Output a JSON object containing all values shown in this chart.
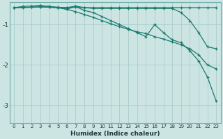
{
  "background_color": "#cce5e3",
  "grid_color": "#aaccca",
  "line_color": "#1a7a6e",
  "xlabel": "Humidex (Indice chaleur)",
  "xlim": [
    -0.5,
    23.5
  ],
  "ylim": [
    -3.45,
    -0.45
  ],
  "yticks": [
    -3,
    -2,
    -1
  ],
  "xticks": [
    0,
    1,
    2,
    3,
    4,
    5,
    6,
    7,
    8,
    9,
    10,
    11,
    12,
    13,
    14,
    15,
    16,
    17,
    18,
    19,
    20,
    21,
    22,
    23
  ],
  "series": [
    {
      "x": [
        0,
        1,
        2,
        3,
        4,
        5,
        6,
        7,
        8,
        9,
        10,
        11,
        12,
        13,
        14,
        15,
        16,
        17,
        18,
        19,
        20,
        21,
        22,
        23
      ],
      "y": [
        -0.58,
        -0.58,
        -0.57,
        -0.56,
        -0.57,
        -0.58,
        -0.58,
        -0.57,
        -0.58,
        -0.58,
        -0.58,
        -0.58,
        -0.58,
        -0.58,
        -0.58,
        -0.58,
        -0.58,
        -0.58,
        -0.58,
        -0.58,
        -0.58,
        -0.58,
        -0.58,
        -0.58
      ]
    },
    {
      "x": [
        0,
        1,
        2,
        3,
        4,
        5,
        6,
        7,
        8,
        9,
        10,
        11,
        12,
        13,
        14,
        15,
        16,
        17,
        18,
        19,
        20,
        21,
        22,
        23
      ],
      "y": [
        -0.58,
        -0.55,
        -0.54,
        -0.53,
        -0.55,
        -0.57,
        -0.58,
        -0.54,
        -0.58,
        -0.6,
        -0.6,
        -0.6,
        -0.6,
        -0.6,
        -0.6,
        -0.6,
        -0.6,
        -0.6,
        -0.6,
        -0.7,
        -0.9,
        -1.2,
        -1.55,
        -1.6
      ]
    },
    {
      "x": [
        0,
        1,
        2,
        3,
        4,
        5,
        6,
        7,
        8,
        9,
        10,
        11,
        12,
        13,
        14,
        15,
        16,
        17,
        18,
        19,
        20,
        21,
        22,
        23
      ],
      "y": [
        -0.58,
        -0.57,
        -0.57,
        -0.56,
        -0.57,
        -0.58,
        -0.62,
        -0.68,
        -0.75,
        -0.82,
        -0.9,
        -0.98,
        -1.05,
        -1.12,
        -1.18,
        -1.22,
        -1.3,
        -1.36,
        -1.43,
        -1.5,
        -1.6,
        -1.75,
        -2.0,
        -2.1
      ]
    },
    {
      "x": [
        2,
        3,
        4,
        5,
        6,
        7,
        8,
        9,
        10,
        11,
        12,
        13,
        14,
        15,
        16,
        17,
        18,
        19,
        20,
        21,
        22,
        23
      ],
      "y": [
        -0.54,
        -0.53,
        -0.55,
        -0.58,
        -0.62,
        -0.55,
        -0.65,
        -0.7,
        -0.8,
        -0.9,
        -1.0,
        -1.1,
        -1.2,
        -1.3,
        -1.0,
        -1.2,
        -1.38,
        -1.45,
        -1.65,
        -1.9,
        -2.3,
        -2.9
      ]
    }
  ]
}
